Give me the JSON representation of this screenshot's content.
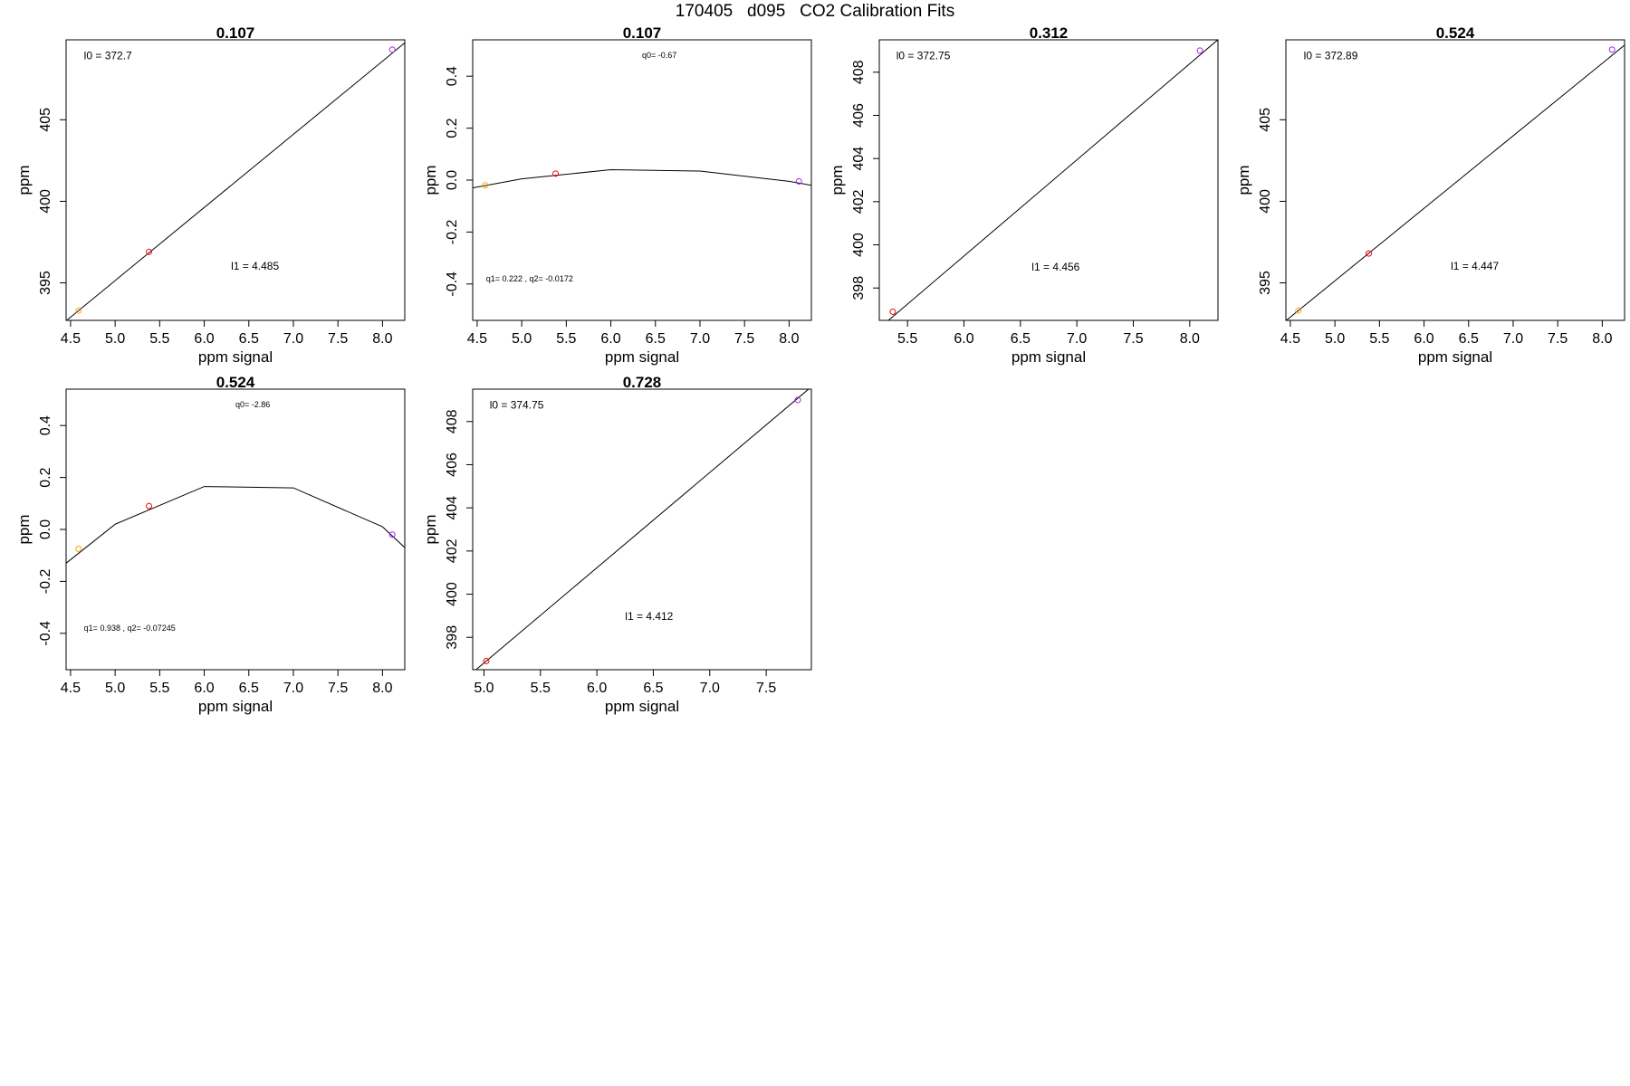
{
  "page": {
    "title": "170405   d095   CO2 Calibration Fits"
  },
  "chart_data": [
    {
      "type": "scatter",
      "title": "0.107",
      "xlabel": "ppm signal",
      "ylabel": "ppm",
      "xlim": [
        4.45,
        8.25
      ],
      "ylim": [
        392.7,
        409.9
      ],
      "xticks": [
        4.5,
        5.0,
        5.5,
        6.0,
        6.5,
        7.0,
        7.5,
        8.0
      ],
      "xtick_labels": [
        "4.5",
        "5.0",
        "5.5",
        "6.0",
        "6.5",
        "7.0",
        "7.5",
        "8.0"
      ],
      "yticks": [
        395,
        400,
        405
      ],
      "ytick_labels": [
        "395",
        "400",
        "405"
      ],
      "points": [
        {
          "x": 4.59,
          "y": 393.3,
          "color": "#ffa500"
        },
        {
          "x": 5.38,
          "y": 396.9,
          "color": "#ff0000"
        },
        {
          "x": 8.11,
          "y": 409.3,
          "color": "#a020f0"
        }
      ],
      "line": {
        "x": [
          4.45,
          8.25
        ],
        "y": [
          392.67,
          409.71
        ]
      },
      "annotations": [
        {
          "text": "l0 =  372.7",
          "x": 4.65,
          "y": 408.7,
          "size": "large"
        },
        {
          "text": "l1 =  4.485",
          "x": 6.3,
          "y": 395.8,
          "size": "large"
        }
      ]
    },
    {
      "type": "scatter",
      "title": "0.107",
      "xlabel": "ppm signal",
      "ylabel": "ppm",
      "xlim": [
        4.45,
        8.25
      ],
      "ylim": [
        -0.54,
        0.54
      ],
      "xticks": [
        4.5,
        5.0,
        5.5,
        6.0,
        6.5,
        7.0,
        7.5,
        8.0
      ],
      "xtick_labels": [
        "4.5",
        "5.0",
        "5.5",
        "6.0",
        "6.5",
        "7.0",
        "7.5",
        "8.0"
      ],
      "yticks": [
        -0.4,
        -0.2,
        0.0,
        0.2,
        0.4
      ],
      "ytick_labels": [
        "-0.4",
        "-0.2",
        "0.0",
        "0.2",
        "0.4"
      ],
      "points": [
        {
          "x": 4.59,
          "y": -0.02,
          "color": "#ffa500"
        },
        {
          "x": 5.38,
          "y": 0.025,
          "color": "#ff0000"
        },
        {
          "x": 8.11,
          "y": -0.005,
          "color": "#a020f0"
        }
      ],
      "line": {
        "x": [
          4.45,
          5.0,
          6.0,
          7.0,
          8.0,
          8.25
        ],
        "y": [
          -0.03,
          0.005,
          0.04,
          0.035,
          -0.005,
          -0.02
        ]
      },
      "annotations": [
        {
          "text": "q0= -0.67",
          "x": 6.35,
          "y": 0.47,
          "size": "small"
        },
        {
          "text": "q1= 0.222 , q2= -0.0172",
          "x": 4.6,
          "y": -0.39,
          "size": "small"
        }
      ]
    },
    {
      "type": "scatter",
      "title": "0.312",
      "xlabel": "ppm signal",
      "ylabel": "ppm",
      "xlim": [
        5.25,
        8.25
      ],
      "ylim": [
        396.5,
        409.5
      ],
      "xticks": [
        5.5,
        6.0,
        6.5,
        7.0,
        7.5,
        8.0
      ],
      "xtick_labels": [
        "5.5",
        "6.0",
        "6.5",
        "7.0",
        "7.5",
        "8.0"
      ],
      "yticks": [
        398,
        400,
        402,
        404,
        406,
        408
      ],
      "ytick_labels": [
        "398",
        "400",
        "402",
        "404",
        "406",
        "408"
      ],
      "points": [
        {
          "x": 5.37,
          "y": 396.9,
          "color": "#ff0000"
        },
        {
          "x": 8.09,
          "y": 409.0,
          "color": "#a020f0"
        }
      ],
      "line": {
        "x": [
          5.25,
          8.25
        ],
        "y": [
          396.14,
          409.51
        ]
      },
      "annotations": [
        {
          "text": "l0 =  372.75",
          "x": 5.4,
          "y": 408.6,
          "size": "large"
        },
        {
          "text": "l1 =  4.456",
          "x": 6.6,
          "y": 398.8,
          "size": "large"
        }
      ]
    },
    {
      "type": "scatter",
      "title": "0.524",
      "xlabel": "ppm signal",
      "ylabel": "ppm",
      "xlim": [
        4.45,
        8.25
      ],
      "ylim": [
        392.7,
        409.9
      ],
      "xticks": [
        4.5,
        5.0,
        5.5,
        6.0,
        6.5,
        7.0,
        7.5,
        8.0
      ],
      "xtick_labels": [
        "4.5",
        "5.0",
        "5.5",
        "6.0",
        "6.5",
        "7.0",
        "7.5",
        "8.0"
      ],
      "yticks": [
        395,
        400,
        405
      ],
      "ytick_labels": [
        "395",
        "400",
        "405"
      ],
      "points": [
        {
          "x": 4.59,
          "y": 393.3,
          "color": "#ffa500"
        },
        {
          "x": 5.38,
          "y": 396.8,
          "color": "#ff0000"
        },
        {
          "x": 8.11,
          "y": 409.3,
          "color": "#a020f0"
        }
      ],
      "line": {
        "x": [
          4.45,
          8.25
        ],
        "y": [
          392.68,
          409.57
        ]
      },
      "annotations": [
        {
          "text": "l0 =  372.89",
          "x": 4.65,
          "y": 408.7,
          "size": "large"
        },
        {
          "text": "l1 =  4.447",
          "x": 6.3,
          "y": 395.8,
          "size": "large"
        }
      ]
    },
    {
      "type": "scatter",
      "title": "0.524",
      "xlabel": "ppm signal",
      "ylabel": "ppm",
      "xlim": [
        4.45,
        8.25
      ],
      "ylim": [
        -0.54,
        0.54
      ],
      "xticks": [
        4.5,
        5.0,
        5.5,
        6.0,
        6.5,
        7.0,
        7.5,
        8.0
      ],
      "xtick_labels": [
        "4.5",
        "5.0",
        "5.5",
        "6.0",
        "6.5",
        "7.0",
        "7.5",
        "8.0"
      ],
      "yticks": [
        -0.4,
        -0.2,
        0.0,
        0.2,
        0.4
      ],
      "ytick_labels": [
        "-0.4",
        "-0.2",
        "0.0",
        "0.2",
        "0.4"
      ],
      "points": [
        {
          "x": 4.59,
          "y": -0.075,
          "color": "#ffa500"
        },
        {
          "x": 5.38,
          "y": 0.09,
          "color": "#ff0000"
        },
        {
          "x": 8.11,
          "y": -0.02,
          "color": "#a020f0"
        }
      ],
      "line": {
        "x": [
          4.45,
          5.0,
          6.0,
          7.0,
          8.0,
          8.25
        ],
        "y": [
          -0.13,
          0.02,
          0.165,
          0.16,
          0.01,
          -0.07
        ]
      },
      "annotations": [
        {
          "text": "q0= -2.86",
          "x": 6.35,
          "y": 0.47,
          "size": "small"
        },
        {
          "text": "q1= 0.938 , q2= -0.07245",
          "x": 4.65,
          "y": -0.39,
          "size": "small"
        }
      ]
    },
    {
      "type": "scatter",
      "title": "0.728",
      "xlabel": "ppm signal",
      "ylabel": "ppm",
      "xlim": [
        4.9,
        7.9
      ],
      "ylim": [
        396.5,
        409.5
      ],
      "xticks": [
        5.0,
        5.5,
        6.0,
        6.5,
        7.0,
        7.5
      ],
      "xtick_labels": [
        "5.0",
        "5.5",
        "6.0",
        "6.5",
        "7.0",
        "7.5"
      ],
      "yticks": [
        398,
        400,
        402,
        404,
        406,
        408
      ],
      "ytick_labels": [
        "398",
        "400",
        "402",
        "404",
        "406",
        "408"
      ],
      "points": [
        {
          "x": 5.02,
          "y": 396.9,
          "color": "#ff0000"
        },
        {
          "x": 7.78,
          "y": 409.0,
          "color": "#a020f0"
        }
      ],
      "line": {
        "x": [
          4.9,
          7.9
        ],
        "y": [
          396.37,
          409.61
        ]
      },
      "annotations": [
        {
          "text": "l0 =  374.75",
          "x": 5.05,
          "y": 408.6,
          "size": "large"
        },
        {
          "text": "l1 =  4.412",
          "x": 6.25,
          "y": 398.8,
          "size": "large"
        }
      ]
    }
  ]
}
